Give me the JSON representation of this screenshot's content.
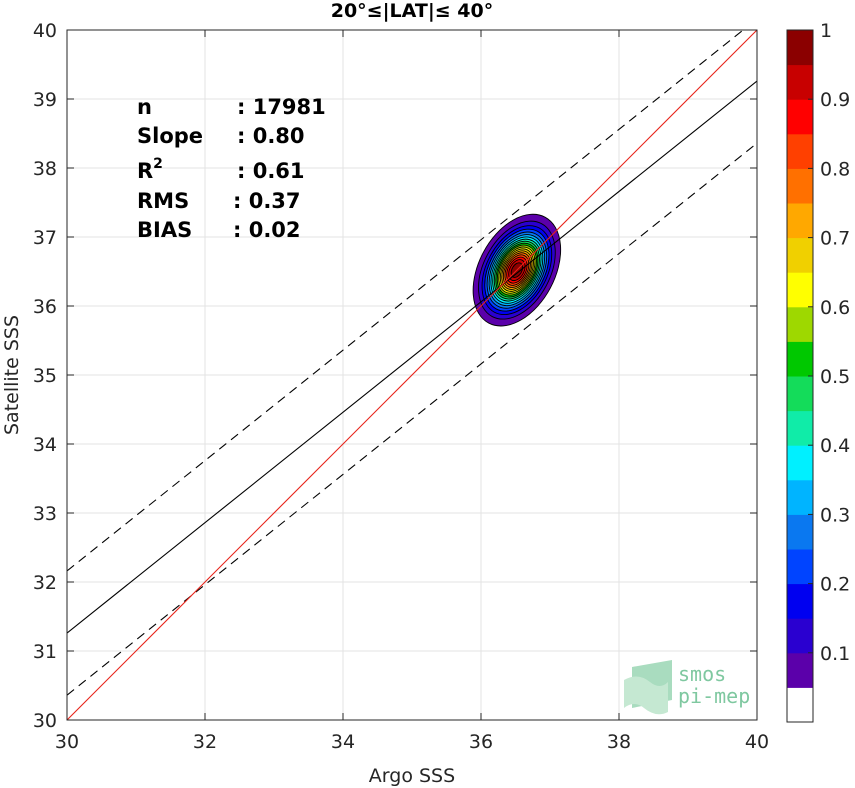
{
  "chart_data": {
    "type": "contour",
    "title": "20°≤|LAT|≤ 40°",
    "xlabel": "Argo SSS",
    "ylabel": "Satellite SSS",
    "xlim": [
      30,
      40
    ],
    "ylim": [
      30,
      40
    ],
    "xticks": [
      "30",
      "32",
      "34",
      "36",
      "38",
      "40"
    ],
    "yticks": [
      "30",
      "31",
      "32",
      "33",
      "34",
      "35",
      "36",
      "37",
      "38",
      "39",
      "40"
    ],
    "grid": true,
    "stats": [
      {
        "label": "n",
        "value": ": 17981"
      },
      {
        "label": "Slope",
        "value": ": 0.80"
      },
      {
        "label": "R",
        "sup": "2",
        "value": ": 0.61"
      },
      {
        "label": "RMS",
        "value": ": 0.37"
      },
      {
        "label": "BIAS",
        "value": ": 0.02"
      }
    ],
    "lines": {
      "one_to_one": {
        "x": [
          30,
          40
        ],
        "y": [
          30,
          40
        ],
        "color": "#e8231a"
      },
      "regression": {
        "x": [
          30,
          40
        ],
        "y": [
          31.26,
          39.26
        ],
        "color": "#000000"
      },
      "upper_bound": {
        "x": [
          30,
          40
        ],
        "y": [
          32.16,
          40.16
        ],
        "color": "#000000",
        "dash": true
      },
      "lower_bound": {
        "x": [
          30,
          40
        ],
        "y": [
          30.36,
          38.36
        ],
        "color": "#000000",
        "dash": true
      }
    },
    "density": {
      "center": [
        36.52,
        36.52
      ],
      "levels": [
        0.05,
        0.1,
        0.15,
        0.2,
        0.25,
        0.3,
        0.35,
        0.4,
        0.45,
        0.5,
        0.55,
        0.6,
        0.65,
        0.7,
        0.75,
        0.8,
        0.85,
        0.9,
        0.95
      ]
    },
    "colorbar": {
      "ticks": [
        "0.1",
        "0.2",
        "0.3",
        "0.4",
        "0.5",
        "0.6",
        "0.7",
        "0.8",
        "0.9",
        "1"
      ],
      "colors": [
        "#ffffff",
        "#5b00aa",
        "#2a00d0",
        "#0000f0",
        "#0044ff",
        "#0a78f0",
        "#00b4ff",
        "#00f0ff",
        "#10eca8",
        "#14dc5a",
        "#00c800",
        "#9ed800",
        "#ffff00",
        "#f0d000",
        "#ffa800",
        "#ff7000",
        "#ff4000",
        "#ff0000",
        "#c80000",
        "#8b0000"
      ]
    },
    "logo": {
      "line1": "smos",
      "line2": "pi-mep"
    }
  }
}
